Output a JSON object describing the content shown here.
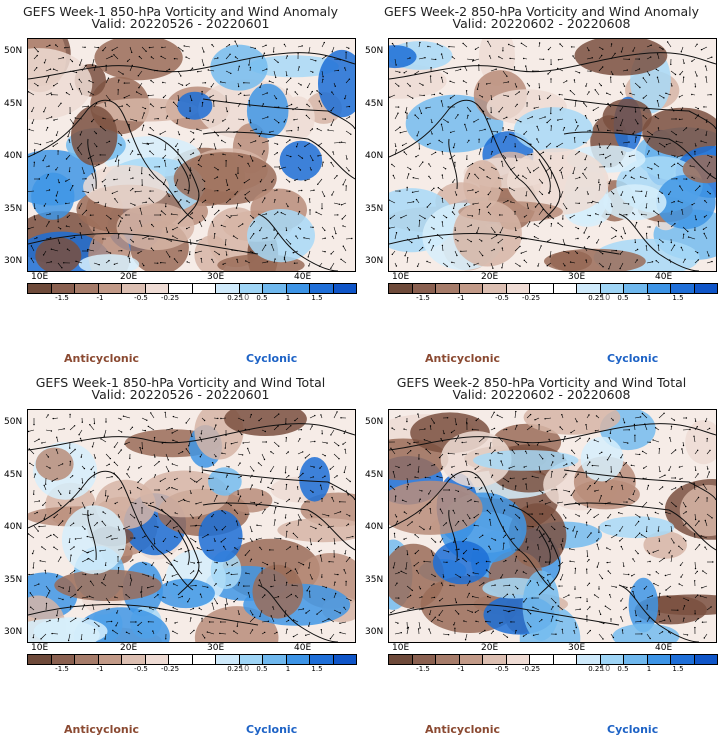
{
  "panels": [
    {
      "line1": "GEFS Week-1 850-hPa Vorticity and Wind Anomaly",
      "line2": "Valid: 20220526 - 20220601"
    },
    {
      "line1": "GEFS Week-2 850-hPa Vorticity and Wind Anomaly",
      "line2": "Valid: 20220602 - 20220608"
    },
    {
      "line1": "GEFS Week-1 850-hPa Vorticity and Wind Total",
      "line2": "Valid: 20220526 - 20220601"
    },
    {
      "line1": "GEFS Week-2 850-hPa Vorticity and Wind Total",
      "line2": "Valid: 20220602 - 20220608"
    }
  ],
  "axes": {
    "lat_labels": [
      "50N",
      "45N",
      "40N",
      "35N",
      "30N"
    ],
    "lon_labels": [
      "10E",
      "20E",
      "30E",
      "40E"
    ]
  },
  "colorbar": {
    "labels": [
      "-1.5",
      "-1",
      "-0.5",
      "-0.25",
      "0.25",
      "0.5",
      "1",
      "1.5"
    ],
    "unit": "10",
    "colors": [
      "#6e4a3a",
      "#8a6050",
      "#a67c6a",
      "#c29a88",
      "#dcbfb2",
      "#efdcd5",
      "#ffffff",
      "#ffffff",
      "#cfeafb",
      "#9fd5f6",
      "#6fb8ee",
      "#3d94e6",
      "#1f6fd8",
      "#0f55c8"
    ]
  },
  "legend": {
    "anticyclonic": "Anticyclonic",
    "cyclonic": "Cyclonic"
  },
  "colors": {
    "anticyclonic": "#8b4a32",
    "cyclonic": "#1e63c6"
  }
}
